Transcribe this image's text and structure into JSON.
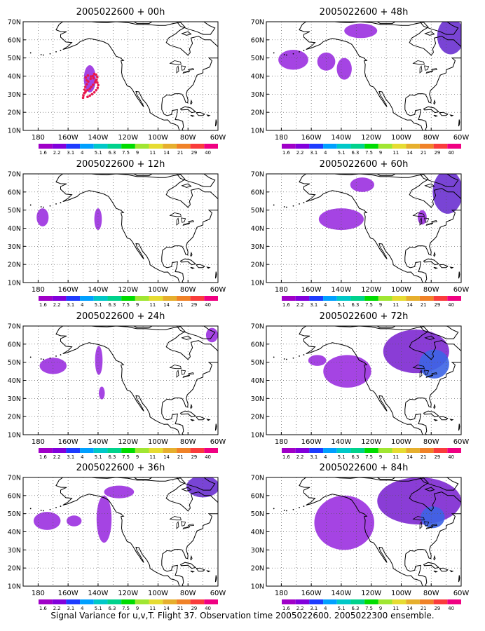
{
  "caption": "Signal Variance for u,v,T. Flight 37. Observation time 2005022600. 2005022300 ensemble.",
  "lat_labels": [
    "70N",
    "60N",
    "50N",
    "40N",
    "30N",
    "20N",
    "10N"
  ],
  "lon_labels": [
    "180",
    "160W",
    "140W",
    "120W",
    "100W",
    "80W",
    "60W"
  ],
  "colorbar": {
    "labels": [
      "1.6",
      "2.2",
      "3.1",
      "4",
      "5.1",
      "6.3",
      "7.5",
      "9",
      "11",
      "14",
      "21",
      "29",
      "40"
    ],
    "colors": [
      "#a000c8",
      "#8200dc",
      "#1e3cff",
      "#00a0ff",
      "#00c8c8",
      "#00d28c",
      "#00dc00",
      "#a0e632",
      "#e6dc32",
      "#e6af2d",
      "#f08228",
      "#fa3c3c",
      "#f00082"
    ]
  },
  "shading_colors": {
    "light": "#9b30e0",
    "mid": "#7d28d2",
    "dark": "#6a30d0",
    "blue": "#3c64e6"
  },
  "obs_color": "#e8184c",
  "panels": [
    {
      "title": "2005022600 + 00h",
      "col": 0,
      "row": 0,
      "obs": true,
      "blobs": [
        {
          "shape": "ellipse",
          "lon": -145.5,
          "lat": 38.5,
          "rlon": 4,
          "rlat": 7.5,
          "tone": "light"
        }
      ]
    },
    {
      "title": "2005022600 + 12h",
      "col": 0,
      "row": 1,
      "blobs": [
        {
          "shape": "ellipse",
          "lon": -177,
          "lat": 46,
          "rlon": 4,
          "rlat": 5,
          "tone": "light"
        },
        {
          "shape": "ellipse",
          "lon": -140,
          "lat": 45,
          "rlon": 2.5,
          "rlat": 6,
          "tone": "light"
        }
      ]
    },
    {
      "title": "2005022600 + 24h",
      "col": 0,
      "row": 2,
      "blobs": [
        {
          "shape": "ellipse",
          "lon": -170,
          "lat": 48,
          "rlon": 9,
          "rlat": 4.5,
          "tone": "light"
        },
        {
          "shape": "ellipse",
          "lon": -139.5,
          "lat": 51,
          "rlon": 2.5,
          "rlat": 8,
          "tone": "light"
        },
        {
          "shape": "ellipse",
          "lon": -137.5,
          "lat": 33,
          "rlon": 2,
          "rlat": 3.5,
          "tone": "light"
        },
        {
          "shape": "ellipse",
          "lon": -64,
          "lat": 65,
          "rlon": 4,
          "rlat": 4,
          "tone": "light"
        }
      ]
    },
    {
      "title": "2005022600 + 36h",
      "col": 0,
      "row": 3,
      "blobs": [
        {
          "shape": "ellipse",
          "lon": -174,
          "lat": 46,
          "rlon": 9,
          "rlat": 5,
          "tone": "light"
        },
        {
          "shape": "ellipse",
          "lon": -156,
          "lat": 46,
          "rlon": 5,
          "rlat": 3,
          "tone": "light"
        },
        {
          "shape": "ellipse",
          "lon": -136,
          "lat": 47,
          "rlon": 5,
          "rlat": 13,
          "tone": "light"
        },
        {
          "shape": "ellipse",
          "lon": -126,
          "lat": 62,
          "rlon": 10,
          "rlat": 3.5,
          "tone": "light"
        },
        {
          "shape": "ellipse",
          "lon": -70,
          "lat": 65,
          "rlon": 11,
          "rlat": 6,
          "tone": "dark"
        }
      ]
    },
    {
      "title": "2005022600 + 48h",
      "col": 1,
      "row": 0,
      "blobs": [
        {
          "shape": "ellipse",
          "lon": -172,
          "lat": 49,
          "rlon": 10,
          "rlat": 5.5,
          "tone": "light"
        },
        {
          "shape": "ellipse",
          "lon": -150,
          "lat": 48,
          "rlon": 6,
          "rlat": 5,
          "tone": "light"
        },
        {
          "shape": "ellipse",
          "lon": -138,
          "lat": 44,
          "rlon": 5,
          "rlat": 6,
          "tone": "light"
        },
        {
          "shape": "ellipse",
          "lon": -127,
          "lat": 65,
          "rlon": 11,
          "rlat": 4,
          "tone": "light"
        },
        {
          "shape": "ellipse",
          "lon": -67,
          "lat": 62,
          "rlon": 9,
          "rlat": 10,
          "tone": "dark"
        }
      ]
    },
    {
      "title": "2005022600 + 60h",
      "col": 1,
      "row": 1,
      "blobs": [
        {
          "shape": "ellipse",
          "lon": -140,
          "lat": 45,
          "rlon": 15,
          "rlat": 6,
          "tone": "light"
        },
        {
          "shape": "ellipse",
          "lon": -126,
          "lat": 64,
          "rlon": 8,
          "rlat": 4,
          "tone": "light"
        },
        {
          "shape": "ellipse",
          "lon": -86,
          "lat": 46,
          "rlon": 3,
          "rlat": 4,
          "tone": "light"
        },
        {
          "shape": "ellipse",
          "lon": -69,
          "lat": 60,
          "rlon": 10,
          "rlat": 12,
          "tone": "dark"
        }
      ]
    },
    {
      "title": "2005022600 + 72h",
      "col": 1,
      "row": 2,
      "blobs": [
        {
          "shape": "ellipse",
          "lon": -136,
          "lat": 45,
          "rlon": 16,
          "rlat": 9,
          "tone": "light"
        },
        {
          "shape": "ellipse",
          "lon": -156,
          "lat": 51,
          "rlon": 6,
          "rlat": 3,
          "tone": "light"
        },
        {
          "shape": "ellipse",
          "lon": -90,
          "lat": 56,
          "rlon": 22,
          "rlat": 12,
          "tone": "mid"
        },
        {
          "shape": "ellipse",
          "lon": -78,
          "lat": 49,
          "rlon": 10,
          "rlat": 8,
          "tone": "blue"
        }
      ]
    },
    {
      "title": "2005022600 + 84h",
      "col": 1,
      "row": 3,
      "blobs": [
        {
          "shape": "ellipse",
          "lon": -138,
          "lat": 45,
          "rlon": 20,
          "rlat": 15,
          "tone": "light"
        },
        {
          "shape": "ellipse",
          "lon": -88,
          "lat": 57,
          "rlon": 28,
          "rlat": 13,
          "tone": "mid"
        },
        {
          "shape": "ellipse",
          "lon": -79,
          "lat": 48,
          "rlon": 8,
          "rlat": 6,
          "tone": "blue"
        }
      ]
    }
  ]
}
